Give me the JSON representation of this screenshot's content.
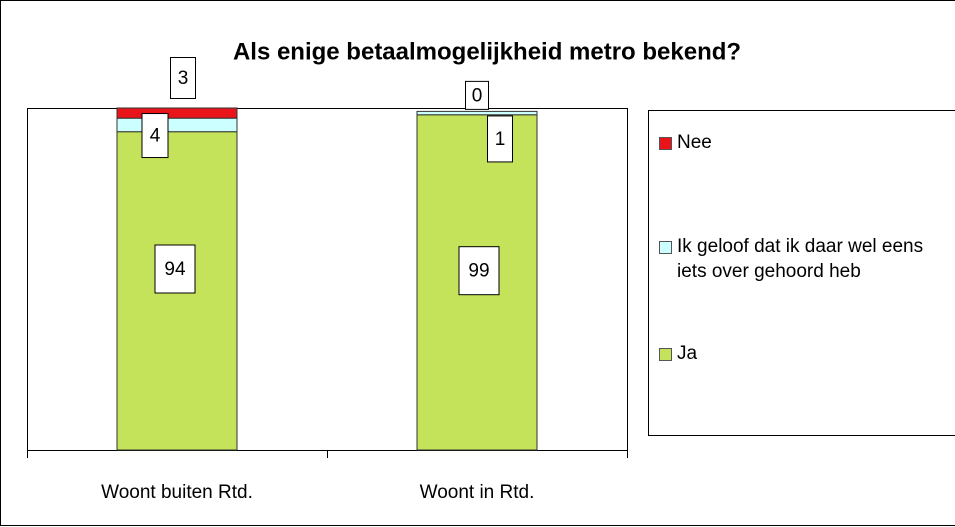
{
  "chart_data": {
    "type": "stacked_bar",
    "title": "Als enige betaalmogelijkheid metro bekend?",
    "categories": [
      "Woont buiten Rtd.",
      "Woont in Rtd."
    ],
    "series": [
      {
        "name": "Ja",
        "color": "#c4e35a",
        "values": [
          94,
          99
        ]
      },
      {
        "name": "Ik geloof dat ik daar wel eens iets over gehoord heb",
        "color": "#ccffff",
        "values": [
          4,
          1
        ]
      },
      {
        "name": "Nee",
        "color": "#e8141a",
        "values": [
          3,
          0
        ]
      }
    ]
  }
}
